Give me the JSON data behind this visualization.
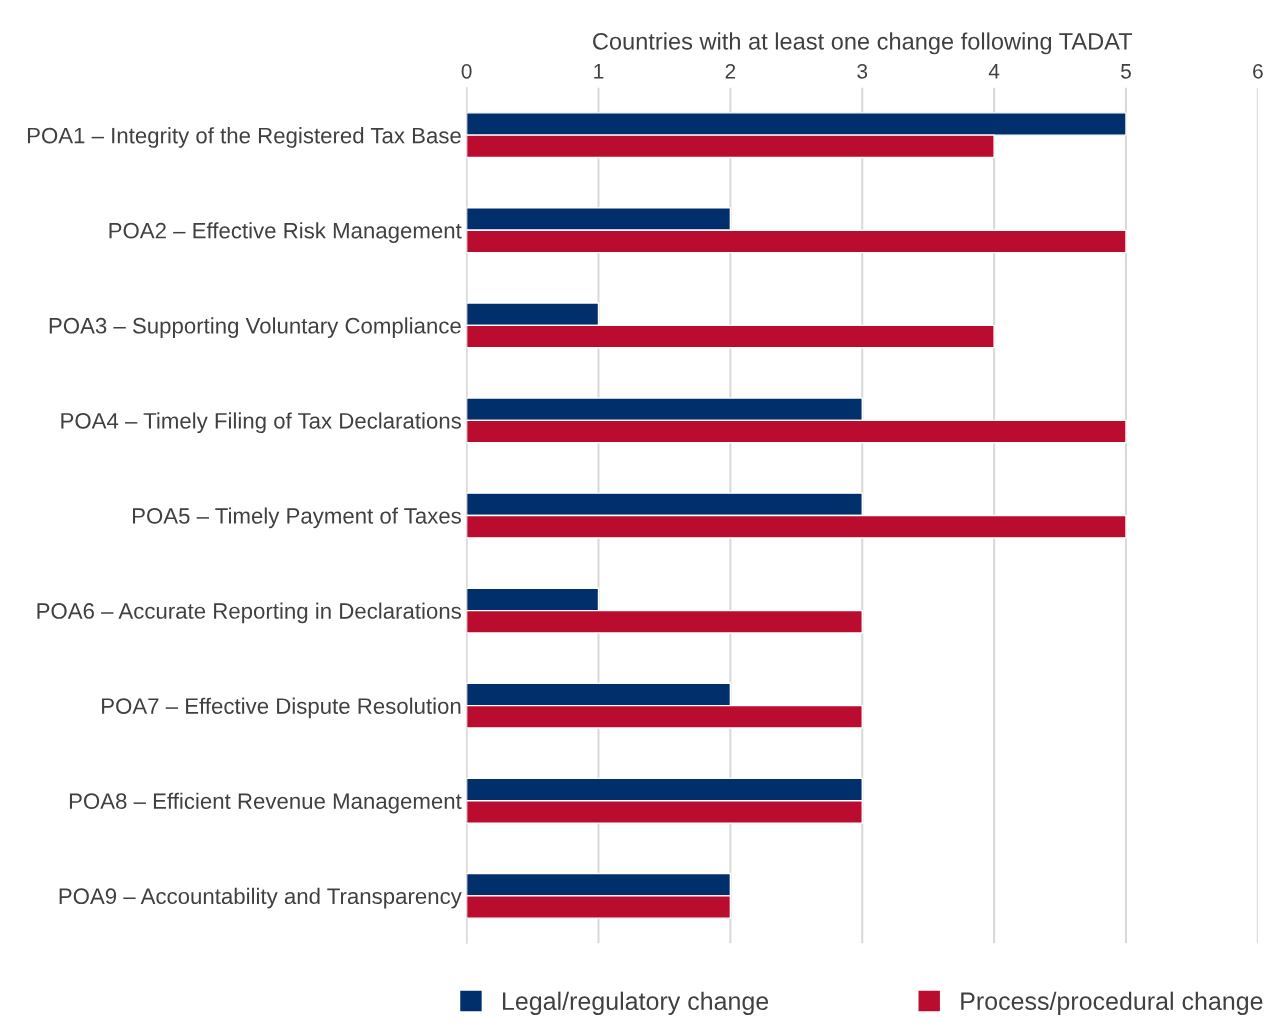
{
  "chart_data": {
    "type": "bar",
    "orientation": "horizontal",
    "xlabel": "Countries with at least one change following TADAT",
    "categories": [
      "POA1 – Integrity of the Registered Tax Base",
      "POA2 – Effective Risk Management",
      "POA3 – Supporting Voluntary Compliance",
      "POA4 – Timely Filing of Tax Declarations",
      "POA5 – Timely Payment of Taxes",
      "POA6 – Accurate Reporting in Declarations",
      "POA7 – Effective Dispute Resolution",
      "POA8 – Efficient Revenue Management",
      "POA9 – Accountability and Transparency"
    ],
    "series": [
      {
        "name": "Legal/regulatory change",
        "color": "#002f6c",
        "values": [
          5,
          2,
          1,
          3,
          3,
          1,
          2,
          3,
          2
        ]
      },
      {
        "name": "Process/procedural change",
        "color": "#ba0c2f",
        "values": [
          4,
          5,
          4,
          5,
          5,
          3,
          3,
          3,
          2
        ]
      }
    ],
    "xlim": [
      0,
      6
    ],
    "xticks": [
      0,
      1,
      2,
      3,
      4,
      5,
      6
    ],
    "grid": "x",
    "legend": "bottom"
  }
}
